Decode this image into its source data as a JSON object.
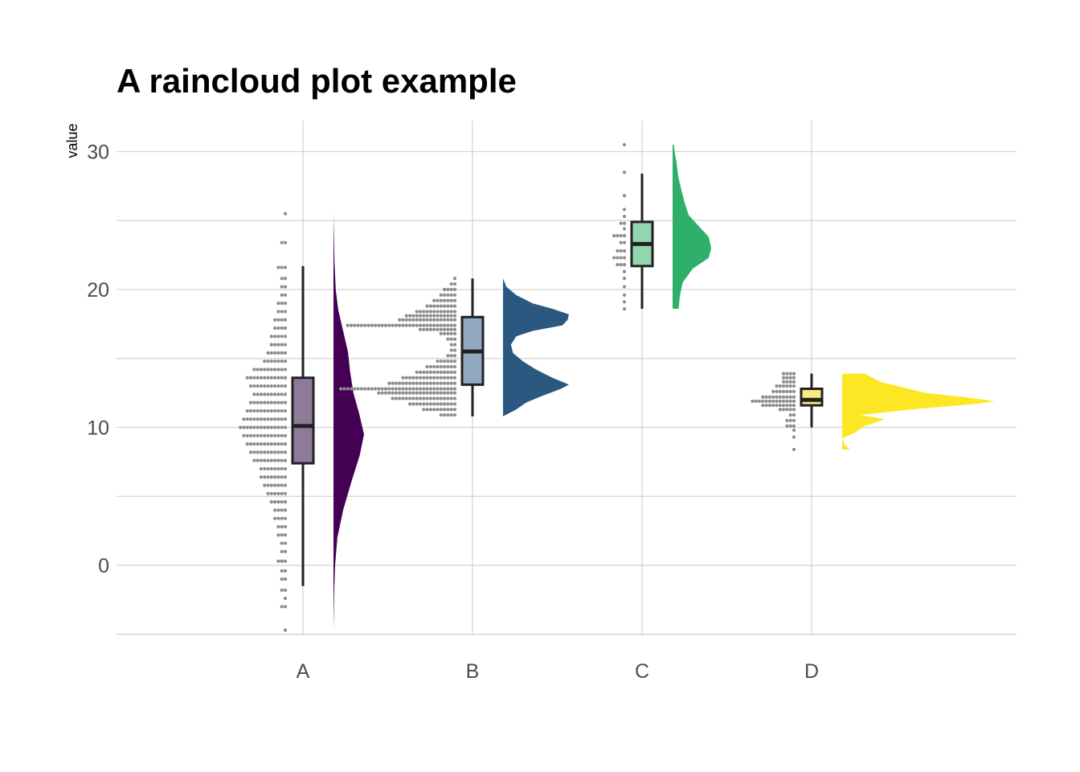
{
  "chart_data": {
    "type": "raincloud",
    "title": "A raincloud plot example",
    "xlabel": "",
    "ylabel": "value",
    "ylim": [
      -5,
      32
    ],
    "yticks": [
      0,
      10,
      20,
      30
    ],
    "grid": true,
    "categories": [
      "A",
      "B",
      "C",
      "D"
    ],
    "groups": [
      {
        "name": "A",
        "fill": "#440154",
        "box_fill": "#8f7a9a",
        "box": {
          "whisker_low": -1.5,
          "q1": 7.4,
          "median": 10.1,
          "q3": 13.6,
          "whisker_high": 21.7
        },
        "range": [
          -4.7,
          25.5
        ],
        "density": [
          [
            -4.7,
            0.0
          ],
          [
            -2,
            0.02
          ],
          [
            0,
            0.05
          ],
          [
            2,
            0.12
          ],
          [
            4,
            0.3
          ],
          [
            6,
            0.55
          ],
          [
            8,
            0.82
          ],
          [
            9.5,
            0.95
          ],
          [
            11,
            0.8
          ],
          [
            12.5,
            0.62
          ],
          [
            14,
            0.52
          ],
          [
            15.5,
            0.45
          ],
          [
            17,
            0.3
          ],
          [
            18.5,
            0.15
          ],
          [
            20,
            0.07
          ],
          [
            22,
            0.03
          ],
          [
            25.5,
            0.0
          ]
        ],
        "dots": [
          [
            -4.7,
            1
          ],
          [
            -3,
            2
          ],
          [
            -2.4,
            1
          ],
          [
            -1.8,
            2
          ],
          [
            -1,
            2
          ],
          [
            -0.4,
            2
          ],
          [
            0.3,
            3
          ],
          [
            1,
            2
          ],
          [
            1.6,
            2
          ],
          [
            2.2,
            3
          ],
          [
            2.8,
            3
          ],
          [
            3.4,
            4
          ],
          [
            4,
            4
          ],
          [
            4.6,
            5
          ],
          [
            5.2,
            6
          ],
          [
            5.8,
            7
          ],
          [
            6.4,
            8
          ],
          [
            7,
            8
          ],
          [
            7.6,
            10
          ],
          [
            8.2,
            11
          ],
          [
            8.8,
            12
          ],
          [
            9.4,
            13
          ],
          [
            10,
            14
          ],
          [
            10.6,
            13
          ],
          [
            11.2,
            12
          ],
          [
            11.8,
            11
          ],
          [
            12.4,
            10
          ],
          [
            13,
            11
          ],
          [
            13.6,
            12
          ],
          [
            14.2,
            10
          ],
          [
            14.8,
            7
          ],
          [
            15.4,
            6
          ],
          [
            16,
            5
          ],
          [
            16.6,
            5
          ],
          [
            17.2,
            4
          ],
          [
            17.8,
            4
          ],
          [
            18.4,
            3
          ],
          [
            19,
            3
          ],
          [
            19.6,
            2
          ],
          [
            20.2,
            2
          ],
          [
            20.8,
            2
          ],
          [
            21.6,
            3
          ],
          [
            23.4,
            2
          ],
          [
            25.5,
            1
          ]
        ]
      },
      {
        "name": "B",
        "fill": "#2a5880",
        "box_fill": "#91a8be",
        "box": {
          "whisker_low": 10.8,
          "q1": 13.1,
          "median": 15.5,
          "q3": 18.0,
          "whisker_high": 20.8
        },
        "range": [
          10.8,
          20.8
        ],
        "density": [
          [
            10.8,
            0.0
          ],
          [
            11.3,
            0.2
          ],
          [
            11.8,
            0.35
          ],
          [
            12.3,
            0.6
          ],
          [
            12.8,
            0.88
          ],
          [
            13.1,
            1.0
          ],
          [
            13.6,
            0.75
          ],
          [
            14.2,
            0.5
          ],
          [
            14.8,
            0.3
          ],
          [
            15.4,
            0.15
          ],
          [
            16.0,
            0.12
          ],
          [
            16.6,
            0.2
          ],
          [
            17.0,
            0.45
          ],
          [
            17.4,
            0.9
          ],
          [
            17.8,
            0.98
          ],
          [
            18.2,
            1.0
          ],
          [
            18.6,
            0.75
          ],
          [
            19.0,
            0.45
          ],
          [
            19.6,
            0.2
          ],
          [
            20.2,
            0.05
          ],
          [
            20.8,
            0.0
          ]
        ]
      },
      {
        "name": "C",
        "fill": "#2fb06a",
        "box_fill": "#92d6b0",
        "box": {
          "whisker_low": 18.6,
          "q1": 21.7,
          "median": 23.3,
          "q3": 24.9,
          "whisker_high": 28.4
        },
        "range": [
          18.6,
          30.5
        ],
        "density": [
          [
            18.6,
            0.15
          ],
          [
            19.5,
            0.18
          ],
          [
            20.5,
            0.25
          ],
          [
            21.5,
            0.5
          ],
          [
            22.3,
            0.9
          ],
          [
            23.0,
            0.96
          ],
          [
            23.8,
            0.9
          ],
          [
            24.6,
            0.65
          ],
          [
            25.4,
            0.4
          ],
          [
            26.3,
            0.3
          ],
          [
            27.2,
            0.22
          ],
          [
            28.2,
            0.14
          ],
          [
            29.2,
            0.1
          ],
          [
            30.0,
            0.05
          ],
          [
            30.5,
            0.03
          ]
        ],
        "dots": [
          [
            18.6,
            1
          ],
          [
            19.1,
            1
          ],
          [
            19.6,
            1
          ],
          [
            20.2,
            1
          ],
          [
            20.8,
            1
          ],
          [
            21.3,
            1
          ],
          [
            21.8,
            3
          ],
          [
            22.3,
            4
          ],
          [
            22.8,
            3
          ],
          [
            23.4,
            2
          ],
          [
            23.9,
            4
          ],
          [
            24.4,
            1
          ],
          [
            24.8,
            2
          ],
          [
            25.3,
            1
          ],
          [
            25.8,
            1
          ],
          [
            26.8,
            1
          ],
          [
            28.5,
            1
          ],
          [
            30.5,
            1
          ]
        ]
      },
      {
        "name": "D",
        "fill": "#fde725",
        "box_fill": "#fbe981",
        "box": {
          "whisker_low": 10.0,
          "q1": 11.6,
          "median": 12.0,
          "q3": 12.8,
          "whisker_high": 13.9
        },
        "range": [
          8.4,
          13.9
        ],
        "density": [
          [
            8.4,
            0.05
          ],
          [
            8.7,
            0.02
          ],
          [
            9.2,
            0.0
          ],
          [
            9.6,
            0.08
          ],
          [
            10.1,
            0.15
          ],
          [
            10.6,
            0.28
          ],
          [
            10.9,
            0.12
          ],
          [
            11.3,
            0.45
          ],
          [
            11.7,
            0.88
          ],
          [
            11.9,
            1.0
          ],
          [
            12.2,
            0.8
          ],
          [
            12.5,
            0.55
          ],
          [
            12.9,
            0.4
          ],
          [
            13.3,
            0.25
          ],
          [
            13.7,
            0.18
          ],
          [
            13.9,
            0.15
          ]
        ],
        "dots": [
          [
            8.4,
            1
          ],
          [
            9.3,
            1
          ],
          [
            9.8,
            1
          ],
          [
            10.1,
            3
          ],
          [
            10.5,
            3
          ],
          [
            10.9,
            2
          ],
          [
            11.3,
            5
          ],
          [
            11.6,
            10
          ],
          [
            11.9,
            13
          ],
          [
            12.2,
            10
          ],
          [
            12.6,
            7
          ],
          [
            13.0,
            6
          ],
          [
            13.3,
            4
          ],
          [
            13.6,
            4
          ],
          [
            13.9,
            4
          ]
        ]
      }
    ],
    "b_dots": [
      [
        10.9,
        5
      ],
      [
        11.3,
        10
      ],
      [
        11.7,
        14
      ],
      [
        12.1,
        19
      ],
      [
        12.5,
        23
      ],
      [
        12.8,
        34
      ],
      [
        13.2,
        20
      ],
      [
        13.6,
        16
      ],
      [
        14.0,
        12
      ],
      [
        14.4,
        9
      ],
      [
        14.8,
        6
      ],
      [
        15.2,
        3
      ],
      [
        15.6,
        2
      ],
      [
        16.0,
        2
      ],
      [
        16.4,
        3
      ],
      [
        16.8,
        5
      ],
      [
        17.1,
        11
      ],
      [
        17.4,
        32
      ],
      [
        17.8,
        17
      ],
      [
        18.1,
        15
      ],
      [
        18.4,
        12
      ],
      [
        18.8,
        9
      ],
      [
        19.2,
        7
      ],
      [
        19.6,
        5
      ],
      [
        20.0,
        4
      ],
      [
        20.4,
        2
      ],
      [
        20.8,
        1
      ]
    ]
  }
}
